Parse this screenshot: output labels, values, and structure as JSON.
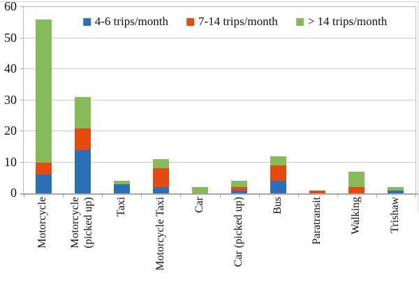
{
  "chart_data": {
    "type": "bar",
    "stacked": true,
    "title": "",
    "xlabel": "",
    "ylabel": "",
    "categories": [
      "Motorcycle",
      "Motorcycle\n(picked up)",
      "Taxi",
      "Motorcycle Taxi",
      "Car",
      "Car (picked up)",
      "Bus",
      "Paratransit",
      "Walking",
      "Trishaw"
    ],
    "series": [
      {
        "name": "4-6 trips/month",
        "color": "#2a6fb8",
        "values": [
          6,
          14,
          3,
          2,
          0,
          1,
          4,
          0,
          0,
          1
        ]
      },
      {
        "name": "7-14 trips/month",
        "color": "#e64a0f",
        "values": [
          4,
          7,
          0,
          6,
          0,
          1,
          5,
          1,
          2,
          0
        ]
      },
      {
        "name": "> 14 trips/month",
        "color": "#87ba59",
        "values": [
          46,
          10,
          1,
          3,
          2,
          2,
          3,
          0,
          5,
          1
        ]
      }
    ],
    "totals": [
      56,
      31,
      4,
      11,
      2,
      4,
      12,
      1,
      7,
      2
    ],
    "ylim": [
      0,
      60
    ],
    "yticks": [
      0,
      10,
      20,
      30,
      40,
      50,
      60
    ],
    "grid": true,
    "legend_position": "top-center-inside",
    "colors": {
      "gridline": "#c9c9c9",
      "axis": "#a6a6a6",
      "plot_border": "#bfbfbf",
      "text": "#111111",
      "background": "#ffffff"
    }
  }
}
